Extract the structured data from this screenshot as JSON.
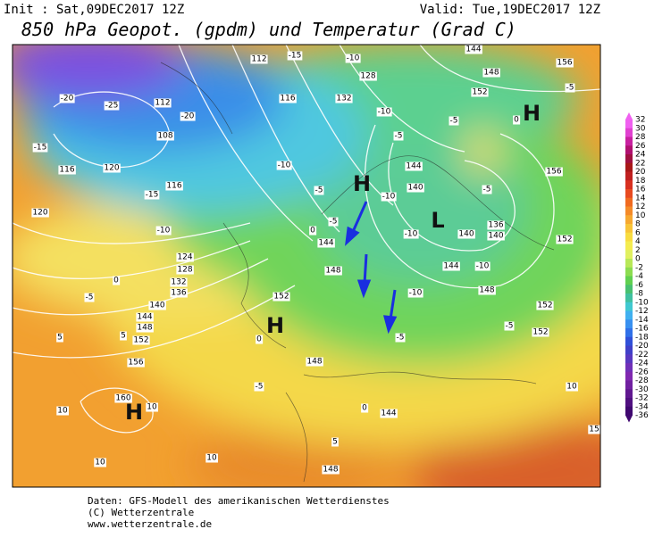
{
  "header": {
    "init": "Init : Sat,09DEC2017 12Z",
    "valid": "Valid: Tue,19DEC2017 12Z",
    "title": "850 hPa Geopot. (gpdm) und Temperatur (Grad C)"
  },
  "map": {
    "pressure_centers": [
      "H",
      "H",
      "H",
      "H",
      "L"
    ],
    "contour_labels": [
      "-20",
      "-25",
      "112",
      "108",
      "-15",
      "116",
      "120",
      "-15",
      "116",
      "-10",
      "120",
      "-20",
      "112",
      "-10",
      "128",
      "132",
      "-10",
      "-5",
      "-5",
      "144",
      "140",
      "-10",
      "-5",
      "-10",
      "140",
      "136",
      "140",
      "152",
      "-10",
      "144",
      "148",
      "-10",
      "152",
      "152",
      "-5",
      "-5",
      "148",
      "152",
      "144",
      "148",
      "-5",
      "0",
      "0",
      "-5",
      "124",
      "128",
      "132",
      "136",
      "140",
      "144",
      "148",
      "152",
      "156",
      "160",
      "10",
      "10",
      "10",
      "10",
      "-5",
      "0",
      "5",
      "5",
      "144",
      "148",
      "5",
      "0",
      "144",
      "148",
      "152",
      "156",
      "156",
      "-5",
      "0",
      "15",
      "10",
      "-15",
      "116",
      "-10",
      "-5"
    ]
  },
  "colorbar": {
    "labels": [
      32,
      30,
      28,
      26,
      24,
      22,
      20,
      18,
      16,
      14,
      12,
      10,
      8,
      6,
      4,
      2,
      0,
      -2,
      -4,
      -6,
      -8,
      -10,
      -12,
      -14,
      -16,
      -18,
      -20,
      -22,
      -24,
      -26,
      -28,
      -30,
      -32,
      -34,
      -36
    ]
  },
  "footer": {
    "lines": [
      "Daten: GFS-Modell des amerikanischen Wetterdienstes",
      "(C) Wetterzentrale",
      "www.wetterzentrale.de"
    ]
  }
}
